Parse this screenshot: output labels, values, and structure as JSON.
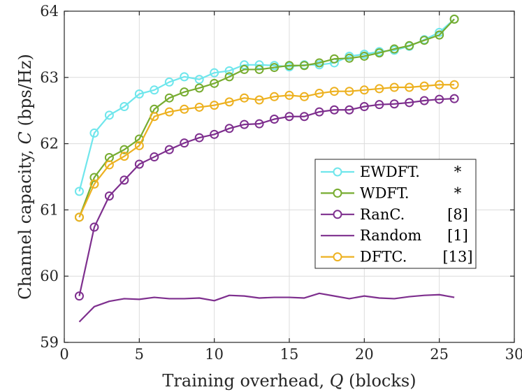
{
  "chart_data": {
    "type": "line",
    "xlabel": "Training overhead, Q (blocks)",
    "xlabel_parts": [
      "Training overhead, ",
      "Q",
      " (blocks)"
    ],
    "ylabel": "Channel capacity, C (bps/Hz)",
    "ylabel_parts": [
      "Channel capacity, ",
      "C",
      " (bps/Hz)"
    ],
    "xlim": [
      0,
      30
    ],
    "ylim": [
      59,
      64
    ],
    "xticks": [
      0,
      5,
      10,
      15,
      20,
      25,
      30
    ],
    "yticks": [
      59,
      60,
      61,
      62,
      63,
      64
    ],
    "grid": true,
    "legend_position": "center-right",
    "series": [
      {
        "name": "EWDFT.",
        "ref": "*",
        "color": "#6fe6ec",
        "marker": "circle",
        "x": [
          1,
          2,
          3,
          4,
          5,
          6,
          7,
          8,
          9,
          10,
          11,
          12,
          13,
          14,
          15,
          16,
          17,
          18,
          19,
          20,
          21,
          22,
          23,
          24,
          25,
          26
        ],
        "values": [
          61.28,
          62.16,
          62.43,
          62.56,
          62.75,
          62.81,
          62.93,
          63.01,
          62.97,
          63.07,
          63.1,
          63.19,
          63.19,
          63.18,
          63.16,
          63.19,
          63.19,
          63.22,
          63.32,
          63.35,
          63.39,
          63.41,
          63.47,
          63.57,
          63.68,
          63.88
        ]
      },
      {
        "name": "WDFT.",
        "ref": "*",
        "color": "#77ac30",
        "marker": "circle",
        "x": [
          1,
          2,
          3,
          4,
          5,
          6,
          7,
          8,
          9,
          10,
          11,
          12,
          13,
          14,
          15,
          16,
          17,
          18,
          19,
          20,
          21,
          22,
          23,
          24,
          25,
          26
        ],
        "values": [
          60.89,
          61.49,
          61.79,
          61.91,
          62.07,
          62.52,
          62.69,
          62.78,
          62.84,
          62.91,
          63.01,
          63.12,
          63.12,
          63.15,
          63.18,
          63.18,
          63.22,
          63.28,
          63.29,
          63.32,
          63.37,
          63.43,
          63.48,
          63.56,
          63.64,
          63.88
        ]
      },
      {
        "name": "RanC.",
        "ref": "[8]",
        "color": "#7e2f8e",
        "marker": "circle",
        "x": [
          1,
          2,
          3,
          4,
          5,
          6,
          7,
          8,
          9,
          10,
          11,
          12,
          13,
          14,
          15,
          16,
          17,
          18,
          19,
          20,
          21,
          22,
          23,
          24,
          25,
          26
        ],
        "values": [
          59.7,
          60.74,
          61.21,
          61.45,
          61.69,
          61.8,
          61.91,
          62.01,
          62.09,
          62.14,
          62.23,
          62.29,
          62.3,
          62.37,
          62.41,
          62.41,
          62.48,
          62.51,
          62.51,
          62.56,
          62.59,
          62.6,
          62.62,
          62.65,
          62.67,
          62.68
        ]
      },
      {
        "name": "Random",
        "ref": "[1]",
        "color": "#7e2f8e",
        "marker": "none",
        "x": [
          1,
          2,
          3,
          4,
          5,
          6,
          7,
          8,
          9,
          10,
          11,
          12,
          13,
          14,
          15,
          16,
          17,
          18,
          19,
          20,
          21,
          22,
          23,
          24,
          25,
          26
        ],
        "values": [
          59.31,
          59.54,
          59.62,
          59.66,
          59.65,
          59.68,
          59.66,
          59.66,
          59.67,
          59.63,
          59.71,
          59.7,
          59.67,
          59.68,
          59.68,
          59.67,
          59.74,
          59.7,
          59.66,
          59.7,
          59.67,
          59.66,
          59.69,
          59.71,
          59.72,
          59.68
        ]
      },
      {
        "name": "DFTC.",
        "ref": "[13]",
        "color": "#edb120",
        "marker": "circle",
        "x": [
          1,
          2,
          3,
          4,
          5,
          6,
          7,
          8,
          9,
          10,
          11,
          12,
          13,
          14,
          15,
          16,
          17,
          18,
          19,
          20,
          21,
          22,
          23,
          24,
          25,
          26
        ],
        "values": [
          60.89,
          61.39,
          61.68,
          61.81,
          61.97,
          62.41,
          62.48,
          62.52,
          62.55,
          62.58,
          62.63,
          62.69,
          62.66,
          62.71,
          62.73,
          62.71,
          62.76,
          62.79,
          62.79,
          62.81,
          62.83,
          62.85,
          62.85,
          62.87,
          62.89,
          62.89
        ]
      }
    ]
  }
}
